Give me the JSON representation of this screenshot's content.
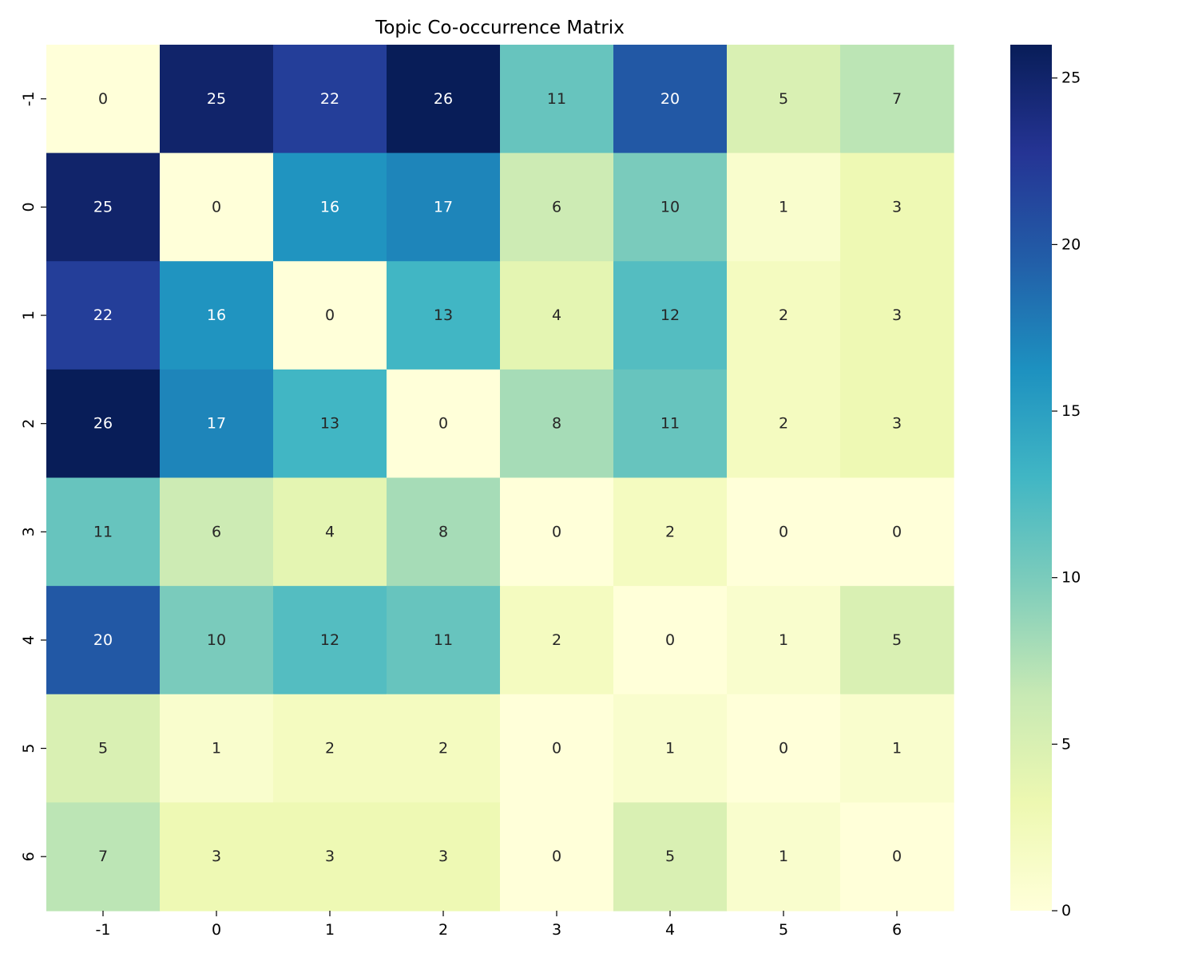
{
  "chart_data": {
    "type": "heatmap",
    "title": "Topic Co-occurrence Matrix",
    "xlabel": "",
    "ylabel": "",
    "x_categories": [
      "-1",
      "0",
      "1",
      "2",
      "3",
      "4",
      "5",
      "6"
    ],
    "y_categories": [
      "-1",
      "0",
      "1",
      "2",
      "3",
      "4",
      "5",
      "6"
    ],
    "values": [
      [
        0,
        25,
        22,
        26,
        11,
        20,
        5,
        7
      ],
      [
        25,
        0,
        16,
        17,
        6,
        10,
        1,
        3
      ],
      [
        22,
        16,
        0,
        13,
        4,
        12,
        2,
        3
      ],
      [
        26,
        17,
        13,
        0,
        8,
        11,
        2,
        3
      ],
      [
        11,
        6,
        4,
        8,
        0,
        2,
        0,
        0
      ],
      [
        20,
        10,
        12,
        11,
        2,
        0,
        1,
        5
      ],
      [
        5,
        1,
        2,
        2,
        0,
        1,
        0,
        1
      ],
      [
        7,
        3,
        3,
        3,
        0,
        5,
        1,
        0
      ]
    ],
    "colormap": "YlGnBu",
    "value_range": [
      0,
      26
    ],
    "colorbar_ticks": [
      0,
      5,
      10,
      15,
      20,
      25
    ],
    "annotations": true
  }
}
